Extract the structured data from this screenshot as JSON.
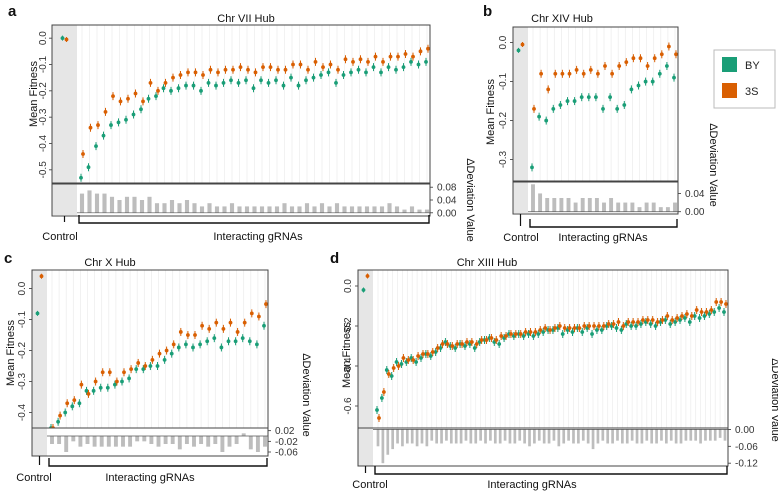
{
  "figure": {
    "colors": {
      "BY": "#1a9e77",
      "3S": "#d95f02",
      "bar": "#bdbdbd",
      "control_bg": "#e6e6e6",
      "grid": "#ececec"
    },
    "legend": [
      {
        "key": "BY",
        "label": "BY"
      },
      {
        "key": "3S",
        "label": "3S"
      }
    ],
    "y_axis_label": "Mean Fitness",
    "deviation_axis_label": "ΔDeviation Value",
    "control_label": "Control",
    "interacting_label": "Interacting gRNAs"
  },
  "chart_data": [
    {
      "panel": "a",
      "title": "Chr VII Hub",
      "type": "scatter",
      "ylim": [
        -0.55,
        0.05
      ],
      "yticks": [
        "0.0",
        "-0.1",
        "-0.2",
        "-0.3",
        "-0.4",
        "-0.5"
      ],
      "ytick_values": [
        0.0,
        -0.1,
        -0.2,
        -0.3,
        -0.4,
        -0.5
      ],
      "bar_ylim": [
        -0.01,
        0.09
      ],
      "bar_ticks": [
        "0.08",
        "0.04",
        "0.00"
      ],
      "bar_tick_values": [
        0.08,
        0.04,
        0.0
      ],
      "control": {
        "BY": 0.0,
        "3S": -0.005
      },
      "series": [
        {
          "key": "BY",
          "values": [
            -0.53,
            -0.49,
            -0.41,
            -0.37,
            -0.33,
            -0.32,
            -0.31,
            -0.29,
            -0.27,
            -0.23,
            -0.22,
            -0.19,
            -0.2,
            -0.19,
            -0.18,
            -0.18,
            -0.2,
            -0.17,
            -0.18,
            -0.17,
            -0.16,
            -0.17,
            -0.16,
            -0.19,
            -0.16,
            -0.17,
            -0.16,
            -0.18,
            -0.15,
            -0.18,
            -0.16,
            -0.15,
            -0.14,
            -0.13,
            -0.17,
            -0.14,
            -0.13,
            -0.12,
            -0.13,
            -0.11,
            -0.13,
            -0.11,
            -0.12,
            -0.11,
            -0.09,
            -0.1,
            -0.09
          ]
        },
        {
          "key": "3S",
          "values": [
            -0.44,
            -0.34,
            -0.33,
            -0.28,
            -0.22,
            -0.24,
            -0.23,
            -0.21,
            -0.24,
            -0.17,
            -0.2,
            -0.17,
            -0.15,
            -0.14,
            -0.13,
            -0.13,
            -0.14,
            -0.12,
            -0.13,
            -0.12,
            -0.12,
            -0.11,
            -0.12,
            -0.13,
            -0.11,
            -0.11,
            -0.12,
            -0.12,
            -0.1,
            -0.1,
            -0.12,
            -0.09,
            -0.11,
            -0.1,
            -0.12,
            -0.08,
            -0.09,
            -0.08,
            -0.09,
            -0.07,
            -0.09,
            -0.07,
            -0.07,
            -0.06,
            -0.07,
            -0.05,
            -0.04
          ]
        }
      ],
      "deviation": [
        0.06,
        0.07,
        0.06,
        0.06,
        0.05,
        0.04,
        0.05,
        0.05,
        0.04,
        0.05,
        0.03,
        0.03,
        0.04,
        0.03,
        0.04,
        0.03,
        0.02,
        0.03,
        0.02,
        0.02,
        0.03,
        0.02,
        0.02,
        0.02,
        0.02,
        0.02,
        0.02,
        0.03,
        0.02,
        0.02,
        0.03,
        0.02,
        0.03,
        0.02,
        0.03,
        0.02,
        0.02,
        0.02,
        0.02,
        0.02,
        0.02,
        0.03,
        0.02,
        0.01,
        0.02,
        0.01,
        0.01
      ]
    },
    {
      "panel": "b",
      "title": "Chr XIV Hub",
      "type": "scatter",
      "ylim": [
        -0.355,
        0.04
      ],
      "yticks": [
        "0.0",
        "-0.1",
        "-0.2",
        "-0.3"
      ],
      "ytick_values": [
        0.0,
        -0.1,
        -0.2,
        -0.3
      ],
      "bar_ylim": [
        -0.005,
        0.065
      ],
      "bar_ticks": [
        "0.04",
        "0.00"
      ],
      "bar_tick_values": [
        0.04,
        0.0
      ],
      "control": {
        "BY": -0.02,
        "3S": -0.005
      },
      "series": [
        {
          "key": "BY",
          "values": [
            -0.32,
            -0.19,
            -0.2,
            -0.17,
            -0.16,
            -0.15,
            -0.15,
            -0.14,
            -0.14,
            -0.14,
            -0.17,
            -0.14,
            -0.17,
            -0.16,
            -0.12,
            -0.11,
            -0.1,
            -0.1,
            -0.08,
            -0.06,
            -0.09
          ]
        },
        {
          "key": "3S",
          "values": [
            -0.17,
            -0.08,
            -0.12,
            -0.08,
            -0.08,
            -0.08,
            -0.07,
            -0.08,
            -0.07,
            -0.08,
            -0.06,
            -0.08,
            -0.06,
            -0.05,
            -0.04,
            -0.04,
            -0.06,
            -0.04,
            -0.03,
            -0.01,
            -0.03
          ]
        }
      ],
      "deviation": [
        0.06,
        0.04,
        0.03,
        0.03,
        0.03,
        0.03,
        0.02,
        0.03,
        0.03,
        0.03,
        0.02,
        0.03,
        0.02,
        0.02,
        0.02,
        0.01,
        0.02,
        0.02,
        0.01,
        0.01,
        0.02
      ]
    },
    {
      "panel": "c",
      "title": "Chr X Hub",
      "type": "scatter",
      "ylim": [
        -0.45,
        0.06
      ],
      "yticks": [
        "0.0",
        "-0.1",
        "-0.2",
        "-0.3",
        "-0.4"
      ],
      "ytick_values": [
        0.0,
        -0.1,
        -0.2,
        -0.3,
        -0.4
      ],
      "bar_ylim": [
        -0.075,
        0.03
      ],
      "bar_ticks": [
        "0.02",
        "-0.02",
        "-0.06"
      ],
      "bar_tick_values": [
        0.02,
        -0.02,
        -0.06
      ],
      "control": {
        "BY": -0.08,
        "3S": 0.04
      },
      "series": [
        {
          "key": "BY",
          "values": [
            -0.45,
            -0.43,
            -0.4,
            -0.38,
            -0.37,
            -0.33,
            -0.33,
            -0.32,
            -0.32,
            -0.31,
            -0.3,
            -0.29,
            -0.26,
            -0.26,
            -0.25,
            -0.25,
            -0.23,
            -0.21,
            -0.19,
            -0.18,
            -0.19,
            -0.18,
            -0.17,
            -0.16,
            -0.19,
            -0.17,
            -0.17,
            -0.16,
            -0.17,
            -0.18,
            -0.12
          ]
        },
        {
          "key": "3S",
          "values": [
            -0.45,
            -0.41,
            -0.37,
            -0.36,
            -0.31,
            -0.34,
            -0.3,
            -0.27,
            -0.27,
            -0.3,
            -0.27,
            -0.26,
            -0.24,
            -0.25,
            -0.23,
            -0.21,
            -0.2,
            -0.18,
            -0.14,
            -0.15,
            -0.15,
            -0.12,
            -0.13,
            -0.11,
            -0.13,
            -0.11,
            -0.14,
            -0.11,
            -0.08,
            -0.09,
            -0.05
          ]
        }
      ],
      "deviation": [
        -0.03,
        -0.03,
        -0.06,
        -0.02,
        -0.04,
        -0.03,
        -0.04,
        -0.04,
        -0.04,
        -0.04,
        -0.04,
        -0.04,
        -0.02,
        -0.02,
        -0.03,
        -0.04,
        -0.03,
        -0.03,
        -0.05,
        -0.03,
        -0.04,
        -0.03,
        -0.04,
        -0.03,
        -0.06,
        -0.04,
        -0.03,
        0.01,
        -0.05,
        -0.06,
        -0.04
      ]
    },
    {
      "panel": "d",
      "title": "Chr XIII Hub",
      "type": "scatter",
      "ylim": [
        -0.71,
        0.08
      ],
      "yticks": [
        "0.0",
        "-0.2",
        "-0.4",
        "-0.6"
      ],
      "ytick_values": [
        0.0,
        -0.2,
        -0.4,
        -0.6
      ],
      "bar_ylim": [
        -0.13,
        0.005
      ],
      "bar_ticks": [
        "0.00",
        "-0.06",
        "-0.12"
      ],
      "bar_tick_values": [
        0.0,
        -0.06,
        -0.12
      ],
      "control": {
        "BY": -0.02,
        "3S": 0.05
      },
      "series": [
        {
          "key": "BY",
          "values": [
            -0.62,
            -0.56,
            -0.42,
            -0.45,
            -0.38,
            -0.39,
            -0.38,
            -0.36,
            -0.38,
            -0.36,
            -0.34,
            -0.35,
            -0.33,
            -0.31,
            -0.28,
            -0.3,
            -0.31,
            -0.29,
            -0.3,
            -0.29,
            -0.31,
            -0.28,
            -0.27,
            -0.26,
            -0.28,
            -0.29,
            -0.26,
            -0.24,
            -0.25,
            -0.24,
            -0.25,
            -0.24,
            -0.25,
            -0.24,
            -0.23,
            -0.22,
            -0.22,
            -0.21,
            -0.24,
            -0.22,
            -0.23,
            -0.21,
            -0.23,
            -0.21,
            -0.24,
            -0.22,
            -0.22,
            -0.2,
            -0.2,
            -0.21,
            -0.22,
            -0.19,
            -0.2,
            -0.2,
            -0.19,
            -0.18,
            -0.19,
            -0.2,
            -0.18,
            -0.17,
            -0.19,
            -0.18,
            -0.17,
            -0.16,
            -0.18,
            -0.15,
            -0.16,
            -0.15,
            -0.14,
            -0.13,
            -0.11,
            -0.13
          ]
        },
        {
          "key": "3S",
          "values": [
            -0.66,
            -0.53,
            -0.44,
            -0.41,
            -0.4,
            -0.36,
            -0.37,
            -0.37,
            -0.35,
            -0.34,
            -0.34,
            -0.33,
            -0.31,
            -0.29,
            -0.29,
            -0.3,
            -0.29,
            -0.29,
            -0.28,
            -0.28,
            -0.29,
            -0.27,
            -0.27,
            -0.26,
            -0.27,
            -0.25,
            -0.25,
            -0.24,
            -0.24,
            -0.24,
            -0.23,
            -0.23,
            -0.23,
            -0.22,
            -0.21,
            -0.22,
            -0.21,
            -0.2,
            -0.21,
            -0.21,
            -0.21,
            -0.21,
            -0.2,
            -0.2,
            -0.2,
            -0.2,
            -0.2,
            -0.19,
            -0.19,
            -0.18,
            -0.2,
            -0.18,
            -0.18,
            -0.18,
            -0.17,
            -0.17,
            -0.17,
            -0.18,
            -0.17,
            -0.15,
            -0.17,
            -0.16,
            -0.15,
            -0.14,
            -0.15,
            -0.12,
            -0.13,
            -0.13,
            -0.12,
            -0.08,
            -0.08,
            -0.09
          ]
        }
      ],
      "deviation": [
        -0.06,
        -0.12,
        -0.09,
        -0.07,
        -0.05,
        -0.06,
        -0.05,
        -0.05,
        -0.06,
        -0.05,
        -0.06,
        -0.04,
        -0.05,
        -0.05,
        -0.04,
        -0.05,
        -0.05,
        -0.05,
        -0.04,
        -0.05,
        -0.05,
        -0.04,
        -0.05,
        -0.04,
        -0.05,
        -0.05,
        -0.04,
        -0.05,
        -0.05,
        -0.04,
        -0.05,
        -0.06,
        -0.05,
        -0.04,
        -0.05,
        -0.05,
        -0.04,
        -0.06,
        -0.05,
        -0.04,
        -0.05,
        -0.05,
        -0.04,
        -0.05,
        -0.07,
        -0.05,
        -0.04,
        -0.05,
        -0.05,
        -0.04,
        -0.05,
        -0.05,
        -0.04,
        -0.05,
        -0.05,
        -0.04,
        -0.05,
        -0.05,
        -0.04,
        -0.05,
        -0.04,
        -0.05,
        -0.05,
        -0.04,
        -0.04,
        -0.04,
        -0.05,
        -0.04,
        -0.04,
        -0.04,
        -0.03,
        -0.04
      ]
    }
  ]
}
